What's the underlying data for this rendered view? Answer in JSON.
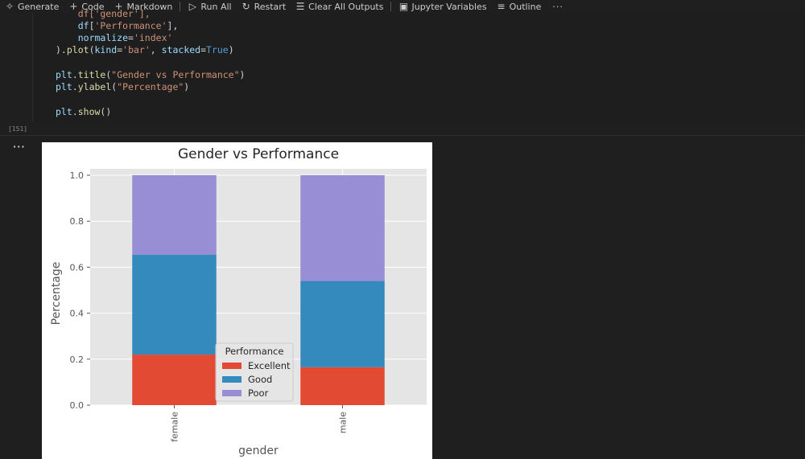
{
  "toolbar": {
    "items": [
      {
        "label": "Generate",
        "icon": "sparkle-icon"
      },
      {
        "label": "Code",
        "icon": "plus-icon"
      },
      {
        "label": "Markdown",
        "icon": "plus-icon"
      },
      {
        "label": "Run All",
        "icon": "run-all-icon"
      },
      {
        "label": "Restart",
        "icon": "restart-icon"
      },
      {
        "label": "Clear All Outputs",
        "icon": "clear-outputs-icon"
      },
      {
        "label": "Jupyter Variables",
        "icon": "variables-icon"
      },
      {
        "label": "Outline",
        "icon": "outline-icon"
      }
    ],
    "more": "···"
  },
  "cell": {
    "execution_count": "[151]",
    "lines": [
      "    df['gender'],",
      "    df['Performance'],",
      "    normalize='index'",
      ").plot(kind='bar', stacked=True)",
      "",
      "plt.title(\"Gender vs Performance\")",
      "plt.ylabel(\"Percentage\")",
      "",
      "plt.show()"
    ]
  },
  "output": {
    "ellipsis": "···"
  },
  "chart_data": {
    "type": "bar",
    "stacked": true,
    "title": "Gender vs Performance",
    "xlabel": "gender",
    "ylabel": "Percentage",
    "categories": [
      "female",
      "male"
    ],
    "series": [
      {
        "name": "Excellent",
        "values": [
          0.22,
          0.165
        ],
        "color": "#e24a33"
      },
      {
        "name": "Good",
        "values": [
          0.435,
          0.375
        ],
        "color": "#348abd"
      },
      {
        "name": "Poor",
        "values": [
          0.345,
          0.46
        ],
        "color": "#988ed5"
      }
    ],
    "ylim": [
      0,
      1.0
    ],
    "yticks": [
      "0.0",
      "0.2",
      "0.4",
      "0.6",
      "0.8",
      "1.0"
    ],
    "legend": {
      "title": "Performance",
      "placement": "lower center"
    },
    "grid": true,
    "background": "#e5e5e5"
  }
}
